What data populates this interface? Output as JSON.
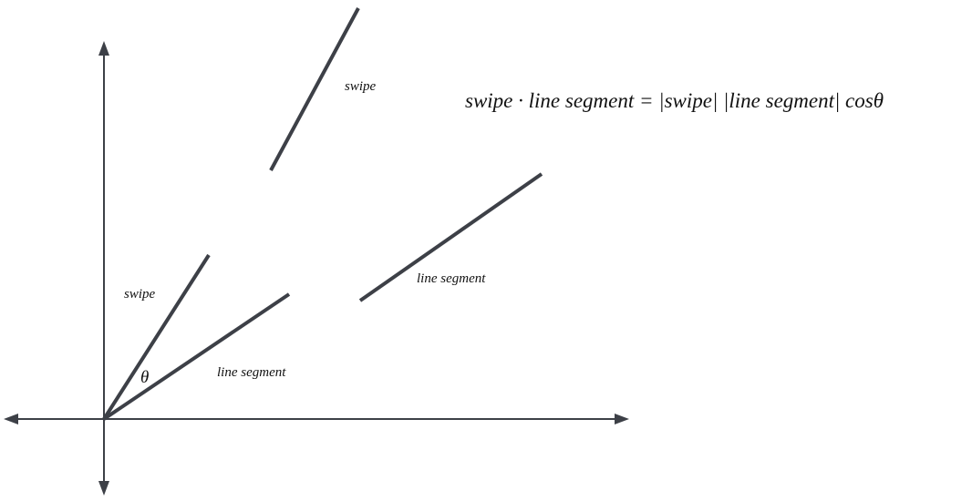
{
  "diagram": {
    "axes": {
      "arrows": [
        "up",
        "down",
        "left",
        "right"
      ]
    },
    "vectors": [
      {
        "name": "swipe-origin-vector",
        "label": "swipe"
      },
      {
        "name": "line-segment-origin-vector",
        "label": "line segment"
      },
      {
        "name": "swipe-translated-vector",
        "label": "swipe"
      },
      {
        "name": "line-segment-translated-vector",
        "label": "line segment"
      }
    ],
    "angle_label": "θ",
    "formula": "swipe · line segment = |swipe| |line segment| cosθ"
  },
  "colors": {
    "line": "#3d4047",
    "text": "#111111",
    "background": "#ffffff"
  }
}
